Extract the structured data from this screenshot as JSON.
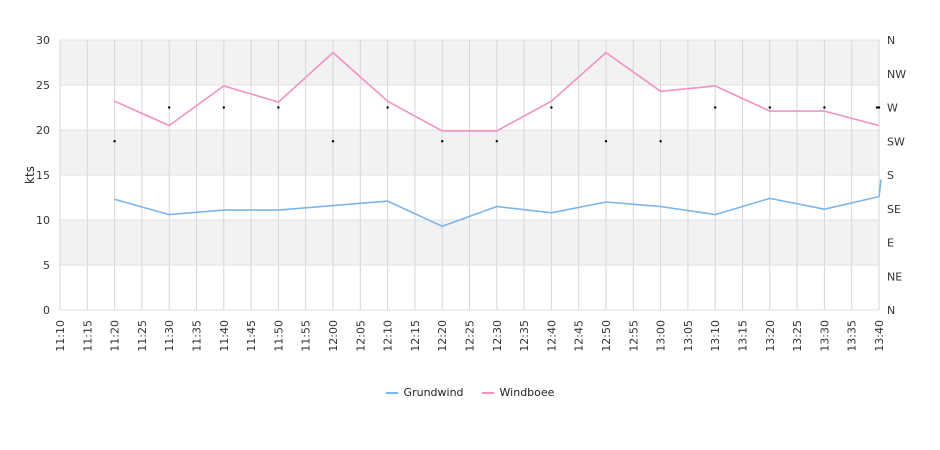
{
  "chart_data": {
    "type": "line",
    "ylabel": "kts",
    "ylim": [
      0,
      30
    ],
    "yticks": [
      "0",
      "5",
      "10",
      "15",
      "20",
      "25",
      "30"
    ],
    "right_ticks": [
      "N",
      "NE",
      "E",
      "SE",
      "S",
      "SW",
      "W",
      "NW",
      "N"
    ],
    "x_ticks": [
      "11:10",
      "11:15",
      "11:20",
      "11:25",
      "11:30",
      "11:35",
      "11:40",
      "11:45",
      "11:50",
      "11:55",
      "12:00",
      "12:05",
      "12:10",
      "12:15",
      "12:20",
      "12:25",
      "12:30",
      "12:35",
      "12:40",
      "12:45",
      "12:50",
      "12:55",
      "13:00",
      "13:05",
      "13:10",
      "13:15",
      "13:20",
      "13:25",
      "13:30",
      "13:35",
      "13:40"
    ],
    "x": [
      "11:20",
      "11:30",
      "11:40",
      "11:50",
      "12:00",
      "12:10",
      "12:20",
      "12:30",
      "12:40",
      "12:50",
      "13:00",
      "13:10",
      "13:20",
      "13:30",
      "13:40"
    ],
    "series": [
      {
        "name": "Grundwind",
        "color": "#7cb5ec",
        "values": [
          12.3,
          10.6,
          11.1,
          11.1,
          11.6,
          12.1,
          9.3,
          11.5,
          10.8,
          12.0,
          11.5,
          10.6,
          12.4,
          11.2,
          12.6
        ],
        "extra_end": 14.5
      },
      {
        "name": "Windboee",
        "color": "#f291c3",
        "values": [
          23.2,
          20.5,
          24.9,
          23.1,
          28.6,
          23.2,
          19.9,
          19.9,
          23.2,
          28.6,
          24.3,
          24.9,
          22.1,
          22.1,
          20.5
        ]
      }
    ],
    "direction": [
      "SW",
      "W",
      "W",
      "W",
      "SW",
      "W",
      "SW",
      "SW",
      "W",
      "SW",
      "SW",
      "W",
      "W",
      "W",
      "W"
    ],
    "direction_end": "W",
    "band_color": "#f2f2f2",
    "grid": true,
    "legend_position": "bottom-center"
  }
}
